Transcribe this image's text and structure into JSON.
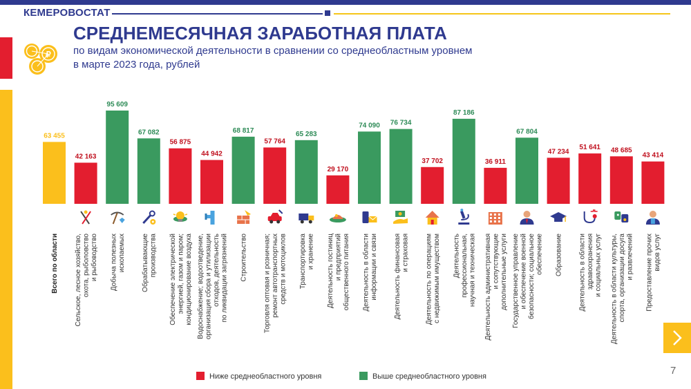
{
  "header": {
    "brand": "КЕМЕРОВОСТАТ",
    "title": "СРЕДНЕМЕСЯЧНАЯ ЗАРАБОТНАЯ ПЛАТА",
    "subtitle_line1": "по видам экономической деятельности в сравнении со среднеобластным уровнем",
    "subtitle_line2": "в марте 2023 года, рублей"
  },
  "colors": {
    "navy": "#2f3a8f",
    "below": "#e31e2f",
    "above": "#3a9a5f",
    "total": "#fbbf1c",
    "label_below": "#c0101e",
    "label_above": "#2e8b57",
    "label_total": "#fbbf1c"
  },
  "legend": {
    "below_label": "Ниже среднеобластного уровня",
    "above_label": "Выше среднеобластного уровня"
  },
  "page_number": "7",
  "chart_data": {
    "type": "bar",
    "title": "СРЕДНЕМЕСЯЧНАЯ ЗАРАБОТНАЯ ПЛАТА",
    "ylim": [
      0,
      100000
    ],
    "reference_value": 63455,
    "categories": [
      {
        "label_lines": [
          "Всего по области"
        ],
        "value": 63455,
        "value_label": "63 455",
        "status": "total",
        "icon": "none"
      },
      {
        "label_lines": [
          "Сельское, лесное хозяйство,",
          "охота, рыболовство",
          "и рыбоводство"
        ],
        "value": 42163,
        "value_label": "42 163",
        "status": "below",
        "icon": "tools-icon"
      },
      {
        "label_lines": [
          "Добыча полезных",
          "ископаемых"
        ],
        "value": 95609,
        "value_label": "95 609",
        "status": "above",
        "icon": "pickaxe-diamond-icon"
      },
      {
        "label_lines": [
          "Обрабатывающие",
          "производства"
        ],
        "value": 67082,
        "value_label": "67 082",
        "status": "above",
        "icon": "wrench-gear-icon"
      },
      {
        "label_lines": [
          "Обеспечение электрической",
          "энергией, газом и паром;",
          "кондиционирование воздуха"
        ],
        "value": 56875,
        "value_label": "56 875",
        "status": "below",
        "icon": "lightbulb-icon"
      },
      {
        "label_lines": [
          "Водоснабжение; водоотведение,",
          "организация сбора и утилизации",
          "отходов, деятельность",
          "по ликвидации загрязнений"
        ],
        "value": 44942,
        "value_label": "44 942",
        "status": "below",
        "icon": "water-pipe-icon"
      },
      {
        "label_lines": [
          "Строительство"
        ],
        "value": 68817,
        "value_label": "68 817",
        "status": "above",
        "icon": "brick-wall-icon"
      },
      {
        "label_lines": [
          "Торговля оптовая и розничная;",
          "ремонт автотранспортных",
          "средств и мотоциклов"
        ],
        "value": 57764,
        "value_label": "57 764",
        "status": "below",
        "icon": "car-repair-icon"
      },
      {
        "label_lines": [
          "Транспортировка",
          "и хранение"
        ],
        "value": 65283,
        "value_label": "65 283",
        "status": "above",
        "icon": "truck-icon"
      },
      {
        "label_lines": [
          "Деятельность гостиниц",
          "и предприятий",
          "общественного питания"
        ],
        "value": 29170,
        "value_label": "29 170",
        "status": "below",
        "icon": "food-plate-icon"
      },
      {
        "label_lines": [
          "Деятельность в области",
          "информации и связи"
        ],
        "value": 74090,
        "value_label": "74 090",
        "status": "above",
        "icon": "phone-mail-icon"
      },
      {
        "label_lines": [
          "Деятельность финансовая",
          "и страховая"
        ],
        "value": 76734,
        "value_label": "76 734",
        "status": "above",
        "icon": "money-hand-icon"
      },
      {
        "label_lines": [
          "Деятельность по операциям",
          "с недвижимым имуществом"
        ],
        "value": 37702,
        "value_label": "37 702",
        "status": "below",
        "icon": "house-icon"
      },
      {
        "label_lines": [
          "Деятельность",
          "профессиональная,",
          "научная и техническая"
        ],
        "value": 87186,
        "value_label": "87 186",
        "status": "above",
        "icon": "microscope-icon"
      },
      {
        "label_lines": [
          "Деятельность административная",
          "и сопутствующие",
          "дополнительные услуги"
        ],
        "value": 36911,
        "value_label": "36 911",
        "status": "below",
        "icon": "office-building-icon"
      },
      {
        "label_lines": [
          "Государственное управление",
          "и обеспечение военной",
          "безопасности; социальное",
          "обеспечение"
        ],
        "value": 67804,
        "value_label": "67 804",
        "status": "above",
        "icon": "official-person-icon"
      },
      {
        "label_lines": [
          "Образование"
        ],
        "value": 47234,
        "value_label": "47 234",
        "status": "below",
        "icon": "graduation-cap-icon"
      },
      {
        "label_lines": [
          "Деятельность в области",
          "здравоохранения",
          "и социальных услуг"
        ],
        "value": 51641,
        "value_label": "51 641",
        "status": "below",
        "icon": "stethoscope-icon"
      },
      {
        "label_lines": [
          "Деятельность в области культуры,",
          "спорта, организации досуга",
          "и развлечений"
        ],
        "value": 48685,
        "value_label": "48 685",
        "status": "below",
        "icon": "theater-icon"
      },
      {
        "label_lines": [
          "Предоставление прочих",
          "видов услуг"
        ],
        "value": 43414,
        "value_label": "43 414",
        "status": "below",
        "icon": "service-person-icon"
      }
    ]
  }
}
